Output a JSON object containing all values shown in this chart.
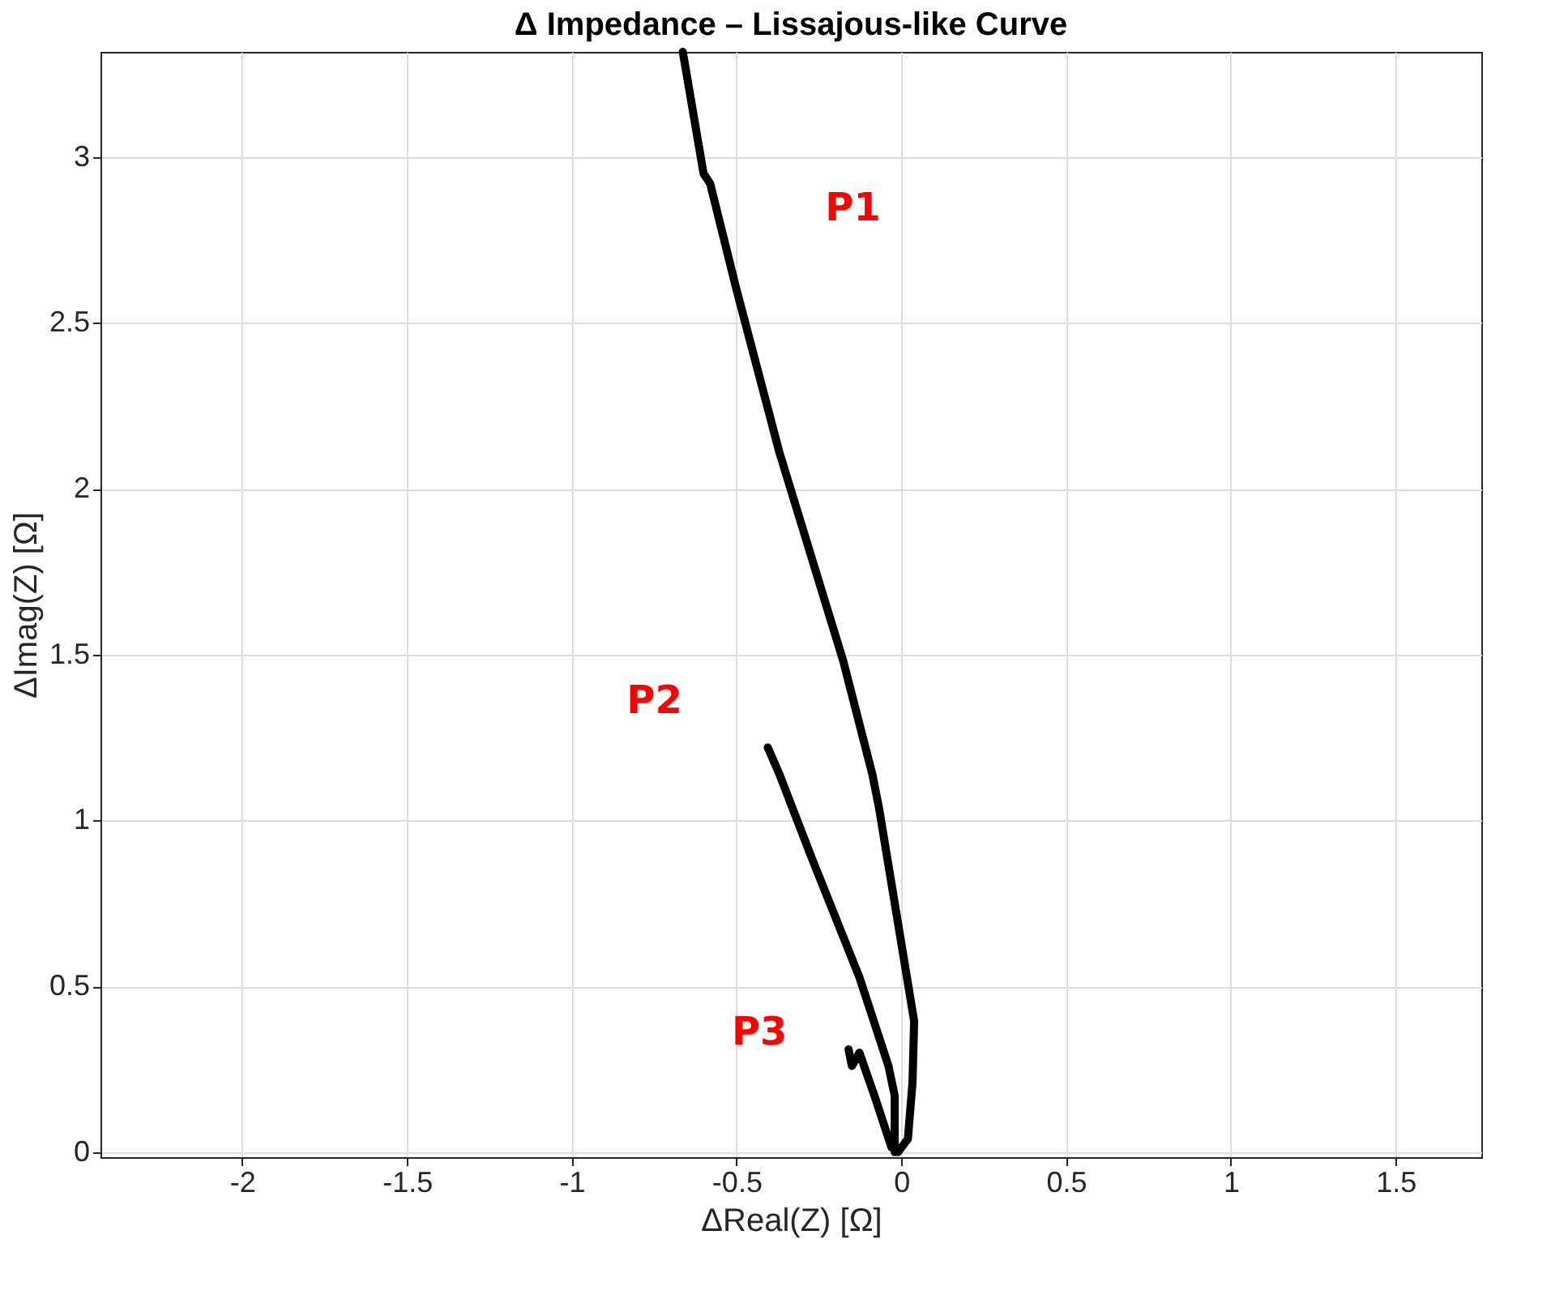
{
  "chart_data": {
    "type": "line",
    "title": "Δ Impedance – Lissajous-like Curve",
    "xlabel": "ΔReal(Z) [Ω]",
    "ylabel": "ΔImag(Z) [Ω]",
    "series": [
      {
        "name": "P1",
        "color": "#000000",
        "x": [
          -0.663,
          -0.6,
          -0.58,
          -0.5,
          -0.37,
          -0.176,
          -0.088,
          -0.068,
          0.039,
          0.034,
          0.02,
          -0.01
        ],
        "values": [
          3.317,
          2.95,
          2.92,
          2.6,
          2.11,
          1.48,
          1.14,
          1.04,
          0.395,
          0.21,
          0.04,
          0.0
        ]
      },
      {
        "name": "P2",
        "color": "#000000",
        "x": [
          -0.405,
          -0.37,
          -0.273,
          -0.127,
          -0.039,
          -0.02,
          -0.02
        ],
        "values": [
          1.22,
          1.14,
          0.89,
          0.527,
          0.26,
          0.17,
          0.0
        ]
      },
      {
        "name": "P3",
        "color": "#000000",
        "x": [
          -0.16,
          -0.15,
          -0.127,
          -0.078,
          -0.03
        ],
        "values": [
          0.31,
          0.26,
          0.3,
          0.16,
          0.015
        ]
      }
    ],
    "xlim": [
      -2.43,
      1.76
    ],
    "ylim": [
      -0.015,
      3.317
    ],
    "xticks": [
      -2,
      -1.5,
      -1,
      -0.5,
      0,
      0.5,
      1,
      1.5
    ],
    "yticks": [
      0,
      0.5,
      1,
      1.5,
      2,
      2.5,
      3
    ],
    "grid": true,
    "line_style": "solid",
    "marker": "none"
  }
}
